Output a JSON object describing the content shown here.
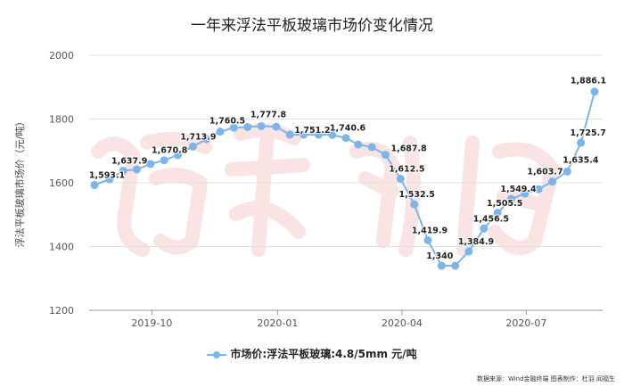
{
  "chart_data": {
    "type": "line",
    "title": "一年来浮法平板玻璃市场价变化情况",
    "ylabel": "浮法平板玻璃市场价（元/吨）",
    "xlabel": "",
    "ylim": [
      1200,
      2000
    ],
    "yticks": [
      1200,
      1400,
      1600,
      1800,
      2000
    ],
    "xticks": [
      {
        "date": "2019-10-01",
        "label": "2019-10"
      },
      {
        "date": "2020-01-01",
        "label": "2020-01"
      },
      {
        "date": "2020-04-01",
        "label": "2020-04"
      },
      {
        "date": "2020-07-01",
        "label": "2020-07"
      }
    ],
    "grid": "horizontal",
    "legend_position": "bottom",
    "colors": {
      "line": "#7cb5ec",
      "gridline": "#e0e0e0",
      "watermark": "#f4c7c7"
    },
    "series": [
      {
        "name": "市场价:浮法平板玻璃:4.8/5mm 元/吨",
        "x": [
          "2019-08-20",
          "2019-08-31",
          "2019-09-10",
          "2019-09-20",
          "2019-09-30",
          "2019-10-10",
          "2019-10-20",
          "2019-10-31",
          "2019-11-10",
          "2019-11-20",
          "2019-11-30",
          "2019-12-10",
          "2019-12-20",
          "2019-12-31",
          "2020-01-10",
          "2020-01-20",
          "2020-01-31",
          "2020-02-10",
          "2020-02-20",
          "2020-02-29",
          "2020-03-10",
          "2020-03-20",
          "2020-03-31",
          "2020-04-10",
          "2020-04-20",
          "2020-04-30",
          "2020-05-10",
          "2020-05-20",
          "2020-05-31",
          "2020-06-10",
          "2020-06-20",
          "2020-06-30",
          "2020-07-10",
          "2020-07-20",
          "2020-07-31",
          "2020-08-10",
          "2020-08-20"
        ],
        "values": [
          1593.1,
          1611,
          1637.9,
          1642,
          1659,
          1670.8,
          1687,
          1713.9,
          1737,
          1760.5,
          1773,
          1775,
          1777.8,
          1776,
          1751.2,
          1751,
          1751,
          1750,
          1740.6,
          1720,
          1712,
          1687.8,
          1612.5,
          1532.5,
          1419.9,
          1340,
          1340,
          1384.9,
          1456.5,
          1505.5,
          1549.4,
          1566,
          1580,
          1603.7,
          1635.4,
          1725.7,
          1886.1
        ],
        "data_labels": [
          "1,593.1",
          null,
          "1,637.9",
          null,
          null,
          "1,670.8",
          null,
          "1,713.9",
          null,
          "1,760.5",
          null,
          null,
          "1,777.8",
          null,
          "1,751.2",
          null,
          null,
          null,
          "1,740.6",
          null,
          null,
          "1,687.8",
          "1,612.5",
          "1,532.5",
          "1,419.9",
          "1,340",
          null,
          "1,384.9",
          "1,456.5",
          "1,505.5",
          "1,549.4",
          null,
          null,
          "1,603.7",
          "1,635.4",
          "1,725.7",
          "1,886.1"
        ]
      }
    ]
  },
  "watermark": "证券时报",
  "source": "数据来源：Wind金融终端 图表制作：杜羽 阎福生"
}
